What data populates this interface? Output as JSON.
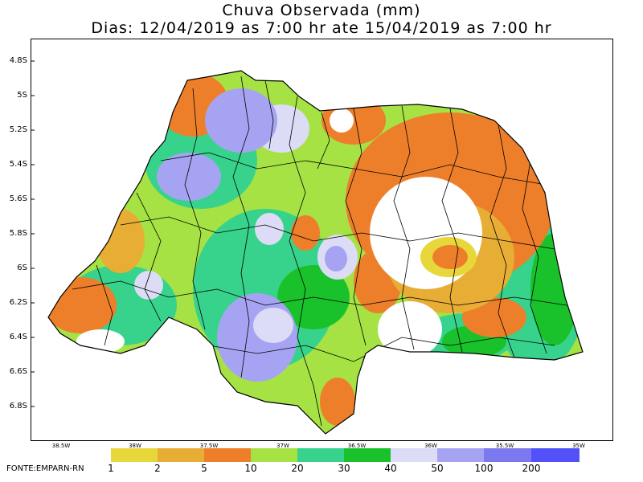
{
  "title": {
    "line1": "Chuva Observada (mm)",
    "line2": "Dias: 12/04/2019 as 7:00 hr ate 15/04/2019 as 7:00 hr"
  },
  "map_region": "Rio Grande do Norte",
  "y_axis": {
    "ticks": [
      "4.8S",
      "5S",
      "5.2S",
      "5.4S",
      "5.6S",
      "5.8S",
      "6S",
      "6.2S",
      "6.4S",
      "6.6S",
      "6.8S"
    ]
  },
  "x_axis": {
    "ticks": [
      "38.5W",
      "38W",
      "37.5W",
      "37W",
      "36.5W",
      "36W",
      "35.5W",
      "35W"
    ]
  },
  "legend": {
    "labels": [
      "1",
      "2",
      "5",
      "10",
      "20",
      "30",
      "40",
      "50",
      "100",
      "200"
    ],
    "colors": [
      "#e8d73a",
      "#e8ad35",
      "#ed7f2b",
      "#a6e244",
      "#37d38c",
      "#19c22b",
      "#dcdcf6",
      "#a6a4f2",
      "#7c78f0",
      "#5151f7"
    ]
  },
  "source": "FONTE:EMPARN-RN"
}
